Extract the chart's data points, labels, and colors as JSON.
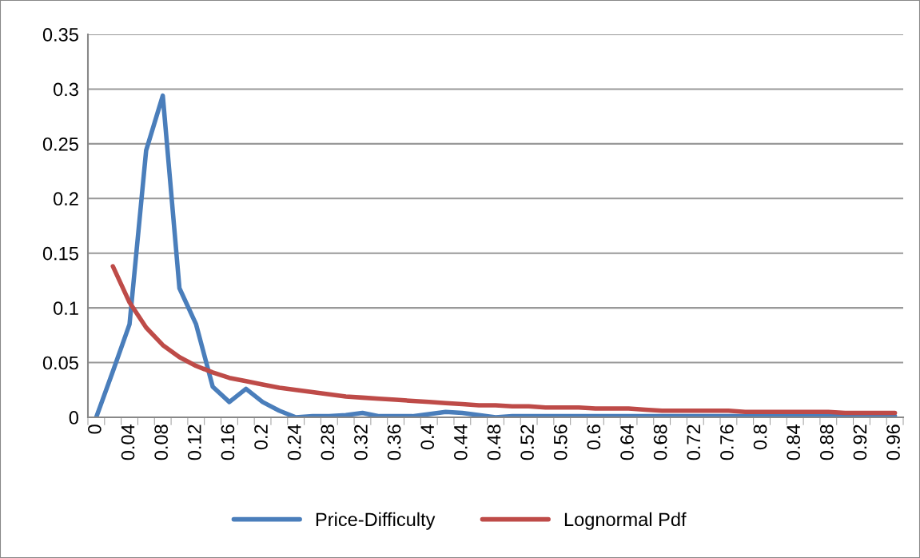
{
  "chart_data": {
    "type": "line",
    "categories": [
      "0",
      null,
      "0.04",
      null,
      "0.08",
      null,
      "0.12",
      null,
      "0.16",
      null,
      "0.2",
      null,
      "0.24",
      null,
      "0.28",
      null,
      "0.32",
      null,
      "0.36",
      null,
      "0.4",
      null,
      "0.44",
      null,
      "0.48",
      null,
      "0.52",
      null,
      "0.56",
      null,
      "0.6",
      null,
      "0.64",
      null,
      "0.68",
      null,
      "0.72",
      null,
      "0.76",
      null,
      "0.8",
      null,
      "0.84",
      null,
      "0.88",
      null,
      "0.92",
      null,
      "0.96"
    ],
    "series": [
      {
        "name": "Price-Difficulty",
        "color": "#4a7ebb",
        "values": [
          0,
          0.042,
          0.085,
          0.244,
          0.294,
          0.118,
          0.085,
          0.028,
          0.014,
          0.026,
          0.014,
          0.006,
          0,
          0.001,
          0.001,
          0.002,
          0.004,
          0.001,
          0.001,
          0.001,
          0.003,
          0.005,
          0.004,
          0.002,
          0,
          0.001,
          0.001,
          0.001,
          0.001,
          0.001,
          0.001,
          0.001,
          0.001,
          0.001,
          0.001,
          0.001,
          0.001,
          0.001,
          0.001,
          0.001,
          0.001,
          0.001,
          0.001,
          0.001,
          0.001,
          0.001,
          0.001,
          0.001,
          0.001
        ]
      },
      {
        "name": "Lognormal Pdf",
        "color": "#be4b48",
        "values": [
          null,
          0.138,
          0.105,
          0.082,
          0.066,
          0.055,
          0.047,
          0.041,
          0.036,
          0.033,
          0.03,
          0.027,
          0.025,
          0.023,
          0.021,
          0.019,
          0.018,
          0.017,
          0.016,
          0.015,
          0.014,
          0.013,
          0.012,
          0.011,
          0.011,
          0.01,
          0.01,
          0.009,
          0.009,
          0.009,
          0.008,
          0.008,
          0.008,
          0.007,
          0.006,
          0.006,
          0.006,
          0.006,
          0.006,
          0.005,
          0.005,
          0.005,
          0.005,
          0.005,
          0.005,
          0.004,
          0.004,
          0.004,
          0.004
        ]
      }
    ],
    "ylim": [
      0,
      0.35
    ],
    "yticks": [
      0,
      0.05,
      0.1,
      0.15,
      0.2,
      0.25,
      0.3,
      0.35
    ],
    "grid": "y",
    "legend": "bottom",
    "marker": "none",
    "line_style": "solid"
  }
}
